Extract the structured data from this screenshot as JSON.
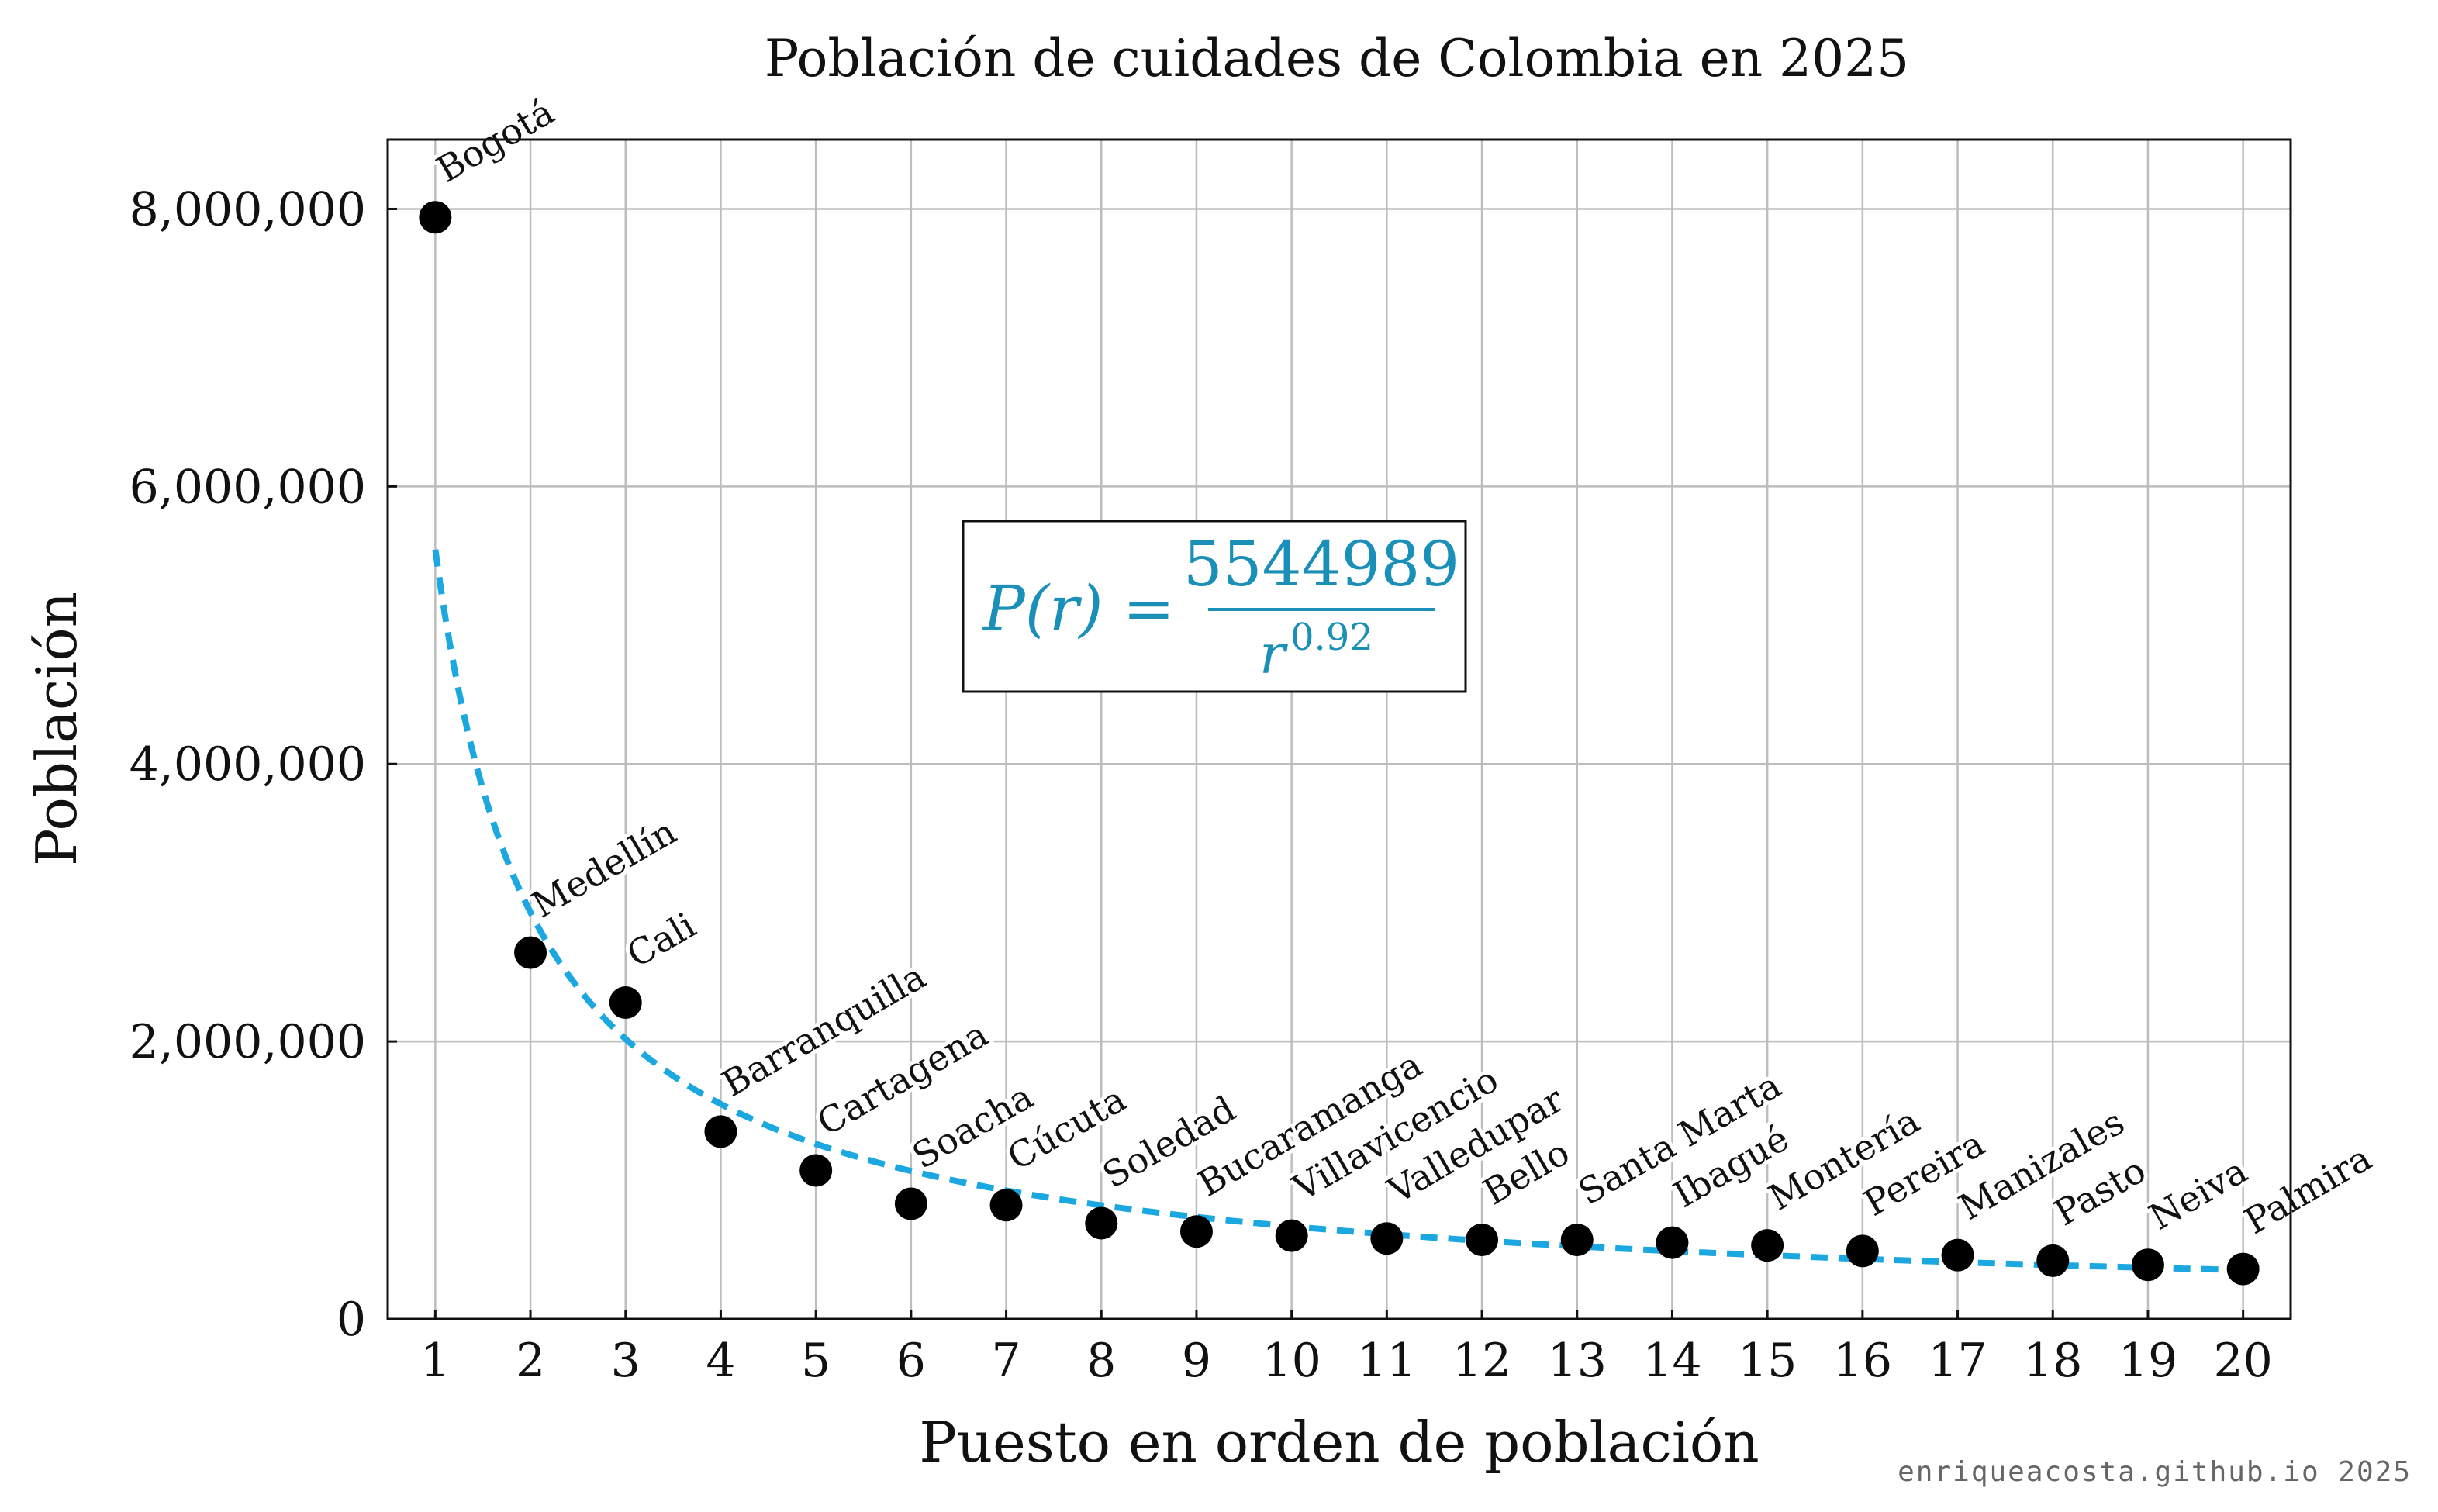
{
  "chart_data": {
    "type": "scatter",
    "title": "Población de cuidades de Colombia en 2025",
    "xlabel": "Puesto en orden de población",
    "ylabel": "Población",
    "x": [
      1,
      2,
      3,
      4,
      5,
      6,
      7,
      8,
      9,
      10,
      11,
      12,
      13,
      14,
      15,
      16,
      17,
      18,
      19,
      20
    ],
    "xticks": [
      "1",
      "2",
      "3",
      "4",
      "5",
      "6",
      "7",
      "8",
      "9",
      "10",
      "11",
      "12",
      "13",
      "14",
      "15",
      "16",
      "17",
      "18",
      "19",
      "20"
    ],
    "xlim": [
      0.5,
      20.5
    ],
    "ylim": [
      0,
      8500000
    ],
    "yticks": [
      0,
      2000000,
      4000000,
      6000000,
      8000000
    ],
    "ytick_labels": [
      "0",
      "2,000,000",
      "4,000,000",
      "6,000,000",
      "8,000,000"
    ],
    "grid": true,
    "series": [
      {
        "labels": [
          "Bogotá",
          "Medellín",
          "Cali",
          "Barranquilla",
          "Cartagena",
          "Soacha",
          "Cúcuta",
          "Soledad",
          "Bucaramanga",
          "Villavicencio",
          "Valledupar",
          "Bello",
          "Santa Marta",
          "Ibagué",
          "Montería",
          "Pereira",
          "Manizales",
          "Pasto",
          "Neiva",
          "Palmira"
        ],
        "values": [
          7940000,
          2640000,
          2280000,
          1350000,
          1070000,
          830000,
          820000,
          690000,
          630000,
          600000,
          580000,
          570000,
          570000,
          550000,
          530000,
          490000,
          460000,
          420000,
          390000,
          360000
        ],
        "color": "#000000"
      },
      {
        "fit": true,
        "coefficient": 5544989,
        "exponent": -0.92,
        "color": "#1BA7E0",
        "style": "dashed"
      }
    ],
    "annotation": {
      "lhs": "P(r) =",
      "numerator": "5544989",
      "denominator_base": "r",
      "denominator_exponent": "0.92"
    }
  },
  "watermark": "enriqueacosta.github.io 2025"
}
